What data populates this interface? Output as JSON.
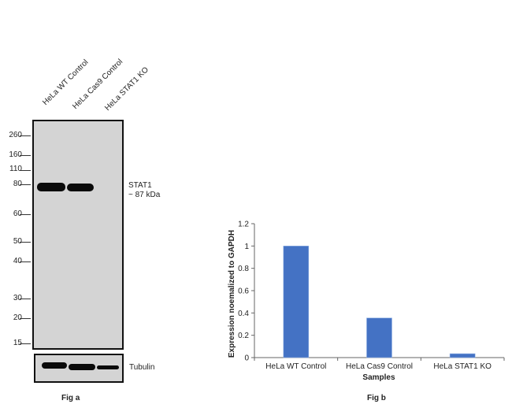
{
  "fig_a": {
    "lane_labels": [
      "HeLa WT Control",
      "HeLa Cas9 Control",
      "HeLa STAT1 KO"
    ],
    "mw_markers": [
      "260",
      "160",
      "110",
      "80",
      "60",
      "50",
      "40",
      "30",
      "20",
      "15"
    ],
    "target_label": "STAT1",
    "target_size": "~ 87 kDa",
    "loading_control": "Tubulin",
    "caption": "Fig a"
  },
  "fig_b": {
    "caption": "Fig b"
  },
  "chart_data": {
    "type": "bar",
    "title": "",
    "categories": [
      "HeLa WT Control",
      "HeLa Cas9 Control",
      "HeLa STAT1 KO"
    ],
    "values": [
      1.0,
      0.355,
      0.035
    ],
    "xlabel": "Samples",
    "ylabel": "Expression noemalized to GAPDH",
    "ylim": [
      0,
      1.2
    ],
    "yticks": [
      "0",
      "0.2",
      "0.4",
      "0.6",
      "0.8",
      "1",
      "1.2"
    ],
    "grid": false,
    "bar_color": "#4472c4"
  }
}
